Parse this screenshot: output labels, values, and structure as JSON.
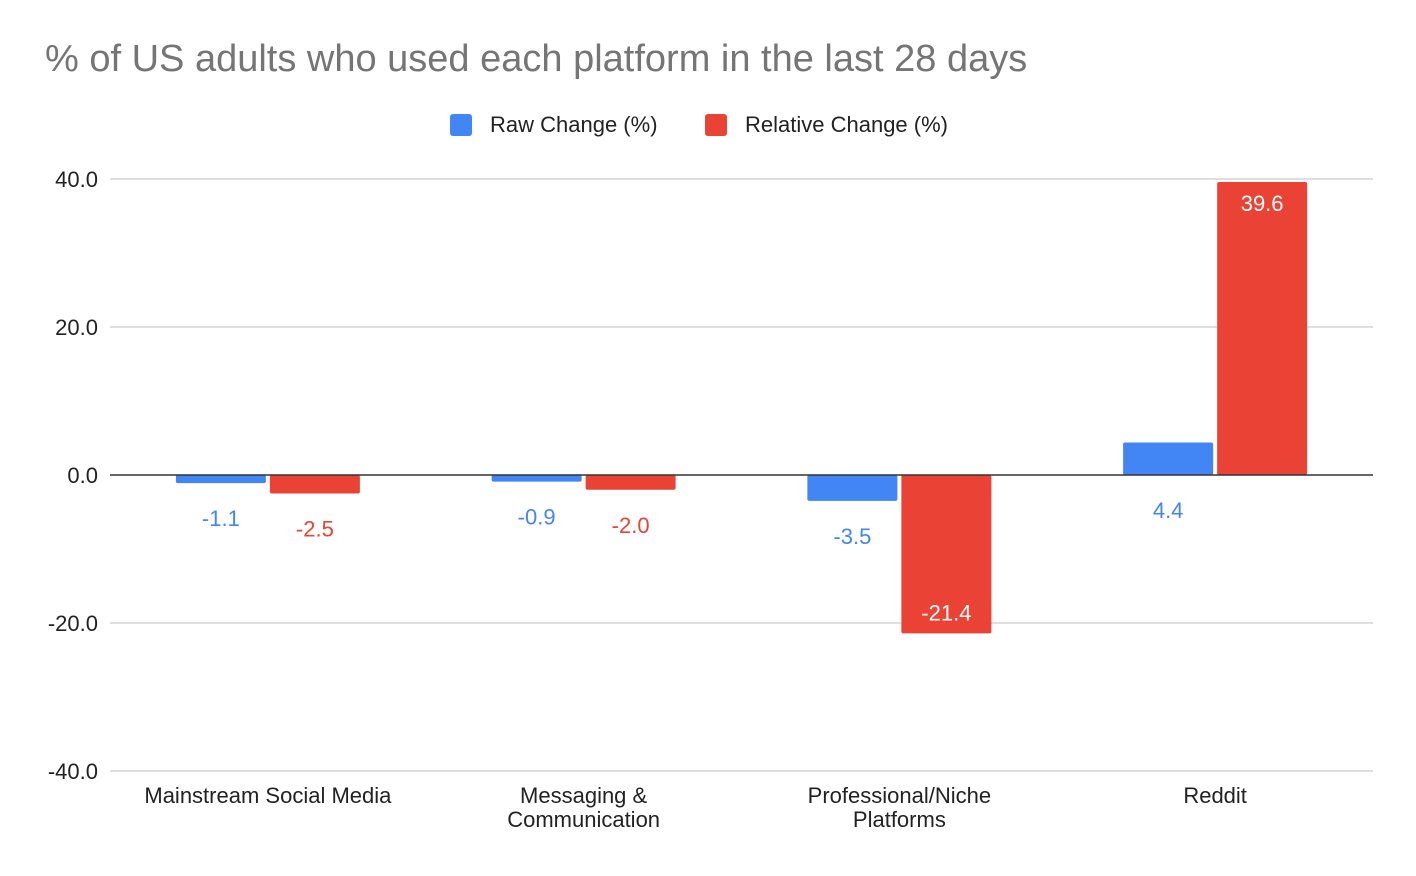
{
  "chart_data": {
    "type": "bar",
    "title": "% of US adults who used each platform in the last 28 days",
    "xlabel": "",
    "ylabel": "",
    "ylim": [
      -40,
      40
    ],
    "yticks": [
      40,
      20,
      0,
      -20,
      -40
    ],
    "ytick_labels": [
      "40.0",
      "20.0",
      "0.0",
      "-20.0",
      "-40.0"
    ],
    "grid": true,
    "legend_position": "top-center",
    "categories": [
      [
        "Mainstream Social Media"
      ],
      [
        "Messaging &",
        "Communication"
      ],
      [
        "Professional/Niche",
        "Platforms"
      ],
      [
        "Reddit"
      ]
    ],
    "series": [
      {
        "name": "Raw Change (%)",
        "color": "#4285F4",
        "values": [
          -1.1,
          -0.9,
          -3.5,
          4.4
        ],
        "labels": [
          "-1.1",
          "-0.9",
          "-3.5",
          "4.4"
        ]
      },
      {
        "name": "Relative Change (%)",
        "color": "#EA4335",
        "values": [
          -2.5,
          -2.0,
          -21.4,
          39.6
        ],
        "labels": [
          "-2.5",
          "-2.0",
          "-21.4",
          "39.6"
        ]
      }
    ]
  }
}
